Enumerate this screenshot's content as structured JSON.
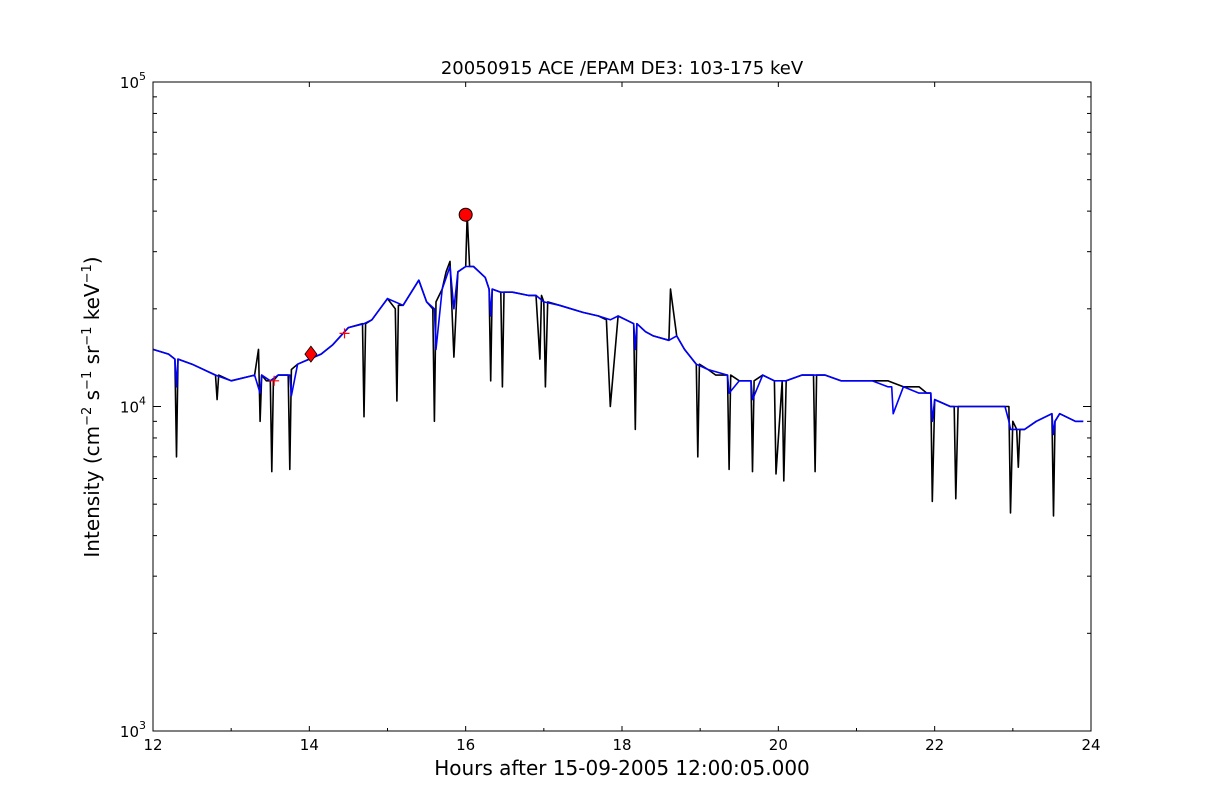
{
  "chart_data": {
    "type": "line",
    "title": "20050915 ACE /EPAM DE3: 103-175 keV",
    "xlabel": "Hours after 15-09-2005 12:00:05.000",
    "ylabel": {
      "prefix": "Intensity (cm",
      "p1": "−2",
      "mid1": " s",
      "p2": "−1",
      "mid2": " sr",
      "p3": "−1",
      "mid3": " keV",
      "p4": "−1",
      "suffix": ")"
    },
    "xlim": [
      12,
      24
    ],
    "ylim": [
      1000,
      100000
    ],
    "yscale": "log",
    "grid": false,
    "x_ticks": [
      {
        "value": 12,
        "label": "12"
      },
      {
        "value": 14,
        "label": "14"
      },
      {
        "value": 16,
        "label": "16"
      },
      {
        "value": 18,
        "label": "18"
      },
      {
        "value": 20,
        "label": "20"
      },
      {
        "value": 22,
        "label": "22"
      },
      {
        "value": 24,
        "label": "24"
      }
    ],
    "y_ticks": [
      {
        "value": 1000,
        "base": "10",
        "exp": "3"
      },
      {
        "value": 10000,
        "base": "10",
        "exp": "4"
      },
      {
        "value": 100000,
        "base": "10",
        "exp": "5"
      }
    ],
    "series": [
      {
        "color": "#000000",
        "x": [
          12.0,
          12.2,
          12.28,
          12.3,
          12.32,
          12.5,
          12.8,
          12.82,
          12.84,
          13.0,
          13.3,
          13.35,
          13.37,
          13.39,
          13.45,
          13.5,
          13.52,
          13.54,
          13.6,
          13.73,
          13.75,
          13.77,
          13.85,
          14.0,
          14.15,
          14.3,
          14.5,
          14.68,
          14.7,
          14.72,
          14.8,
          15.0,
          15.1,
          15.12,
          15.14,
          15.2,
          15.4,
          15.5,
          15.58,
          15.6,
          15.62,
          15.7,
          15.75,
          15.8,
          15.85,
          15.9,
          16.0,
          16.02,
          16.05,
          16.1,
          16.25,
          16.3,
          16.32,
          16.34,
          16.45,
          16.47,
          16.49,
          16.6,
          16.8,
          16.9,
          16.95,
          16.97,
          17.0,
          17.02,
          17.05,
          17.2,
          17.5,
          17.7,
          17.8,
          17.85,
          17.95,
          18.05,
          18.15,
          18.17,
          18.19,
          18.3,
          18.4,
          18.6,
          18.62,
          18.7,
          18.8,
          18.95,
          18.97,
          18.99,
          19.1,
          19.2,
          19.35,
          19.37,
          19.39,
          19.5,
          19.6,
          19.65,
          19.67,
          19.69,
          19.8,
          19.95,
          19.97,
          20.05,
          20.07,
          20.1,
          20.3,
          20.45,
          20.47,
          20.49,
          20.6,
          20.8,
          21.0,
          21.2,
          21.4,
          21.6,
          21.8,
          21.9,
          21.95,
          21.97,
          22.0,
          22.2,
          22.25,
          22.27,
          22.3,
          22.5,
          22.7,
          22.9,
          22.95,
          22.97,
          23.0,
          23.05,
          23.07,
          23.09,
          23.15,
          23.3,
          23.5,
          23.52,
          23.54,
          23.6,
          23.8,
          23.9
        ],
        "y": [
          15000,
          14500,
          14000,
          7000,
          14000,
          13500,
          12500,
          10500,
          12500,
          12000,
          12500,
          15000,
          9000,
          12500,
          12000,
          12000,
          6300,
          12000,
          12500,
          12500,
          6400,
          13000,
          13500,
          14000,
          14500,
          15500,
          17500,
          18000,
          9300,
          18000,
          18500,
          21500,
          20000,
          10400,
          20500,
          20500,
          24500,
          21000,
          20000,
          9000,
          21000,
          23000,
          26000,
          28000,
          14200,
          26000,
          27000,
          39000,
          27000,
          27000,
          25000,
          23000,
          12000,
          23000,
          22500,
          11500,
          22500,
          22500,
          22000,
          22000,
          14000,
          22000,
          21000,
          11500,
          21000,
          20500,
          19500,
          19000,
          18500,
          10000,
          19000,
          18500,
          18000,
          8500,
          18000,
          17000,
          16500,
          16000,
          23000,
          16500,
          15000,
          13500,
          7000,
          13500,
          13000,
          12500,
          12500,
          6400,
          12500,
          12000,
          12000,
          12000,
          6300,
          12000,
          12500,
          12000,
          6200,
          12000,
          5900,
          12000,
          12500,
          12500,
          6300,
          12500,
          12500,
          12000,
          12000,
          12000,
          12000,
          11500,
          11500,
          11000,
          11000,
          5100,
          10500,
          10000,
          10000,
          5200,
          10000,
          10000,
          10000,
          10000,
          10000,
          4700,
          9000,
          8500,
          6500,
          8500,
          8500,
          9000,
          9500,
          4600,
          9000,
          9500,
          9000,
          9000
        ]
      },
      {
        "color": "#0000ff",
        "x": [
          12.0,
          12.2,
          12.28,
          12.3,
          12.32,
          12.5,
          12.8,
          13.0,
          13.3,
          13.37,
          13.39,
          13.5,
          13.6,
          13.75,
          13.77,
          13.85,
          14.0,
          14.15,
          14.3,
          14.5,
          14.7,
          14.8,
          15.0,
          15.2,
          15.4,
          15.5,
          15.6,
          15.62,
          15.7,
          15.8,
          15.85,
          15.9,
          16.0,
          16.1,
          16.25,
          16.3,
          16.32,
          16.34,
          16.45,
          16.6,
          16.8,
          16.9,
          17.0,
          17.2,
          17.5,
          17.7,
          17.85,
          17.95,
          18.05,
          18.15,
          18.17,
          18.19,
          18.3,
          18.4,
          18.6,
          18.7,
          18.8,
          18.95,
          19.1,
          19.35,
          19.37,
          19.5,
          19.65,
          19.67,
          19.8,
          19.95,
          20.1,
          20.3,
          20.45,
          20.6,
          20.8,
          21.0,
          21.2,
          21.4,
          21.45,
          21.47,
          21.6,
          21.8,
          21.95,
          21.97,
          22.0,
          22.2,
          22.25,
          22.3,
          22.5,
          22.7,
          22.9,
          22.95,
          22.97,
          23.0,
          23.05,
          23.15,
          23.3,
          23.5,
          23.52,
          23.54,
          23.6,
          23.8,
          23.9
        ],
        "y": [
          15000,
          14500,
          14000,
          11500,
          14000,
          13500,
          12500,
          12000,
          12500,
          11000,
          12500,
          12000,
          12500,
          12500,
          10800,
          13500,
          14000,
          14500,
          15500,
          17500,
          18000,
          18500,
          21500,
          20500,
          24500,
          21000,
          20000,
          15000,
          23000,
          27000,
          20000,
          26000,
          27000,
          27000,
          25000,
          23000,
          19000,
          23000,
          22500,
          22500,
          22000,
          22000,
          21000,
          20500,
          19500,
          19000,
          18500,
          19000,
          18500,
          18000,
          15000,
          18000,
          17000,
          16500,
          16000,
          16500,
          15000,
          13500,
          13000,
          12500,
          11000,
          12000,
          12000,
          10500,
          12500,
          12000,
          12000,
          12500,
          12500,
          12500,
          12000,
          12000,
          12000,
          11500,
          11500,
          9500,
          11500,
          11000,
          11000,
          9000,
          10500,
          10000,
          10000,
          10000,
          10000,
          10000,
          10000,
          9000,
          8500,
          8500,
          8500,
          8500,
          9000,
          9500,
          8200,
          9000,
          9500,
          9000,
          9000
        ]
      }
    ],
    "markers": [
      {
        "x": 16.0,
        "y": 39000,
        "shape": "circle",
        "color": "#ff0000"
      },
      {
        "x": 14.02,
        "y": 14500,
        "shape": "diamond",
        "color": "#ff0000"
      },
      {
        "x": 13.55,
        "y": 12000,
        "shape": "plus",
        "color": "#ff0000"
      },
      {
        "x": 14.45,
        "y": 16800,
        "shape": "plus",
        "color": "#ff0000"
      }
    ]
  }
}
